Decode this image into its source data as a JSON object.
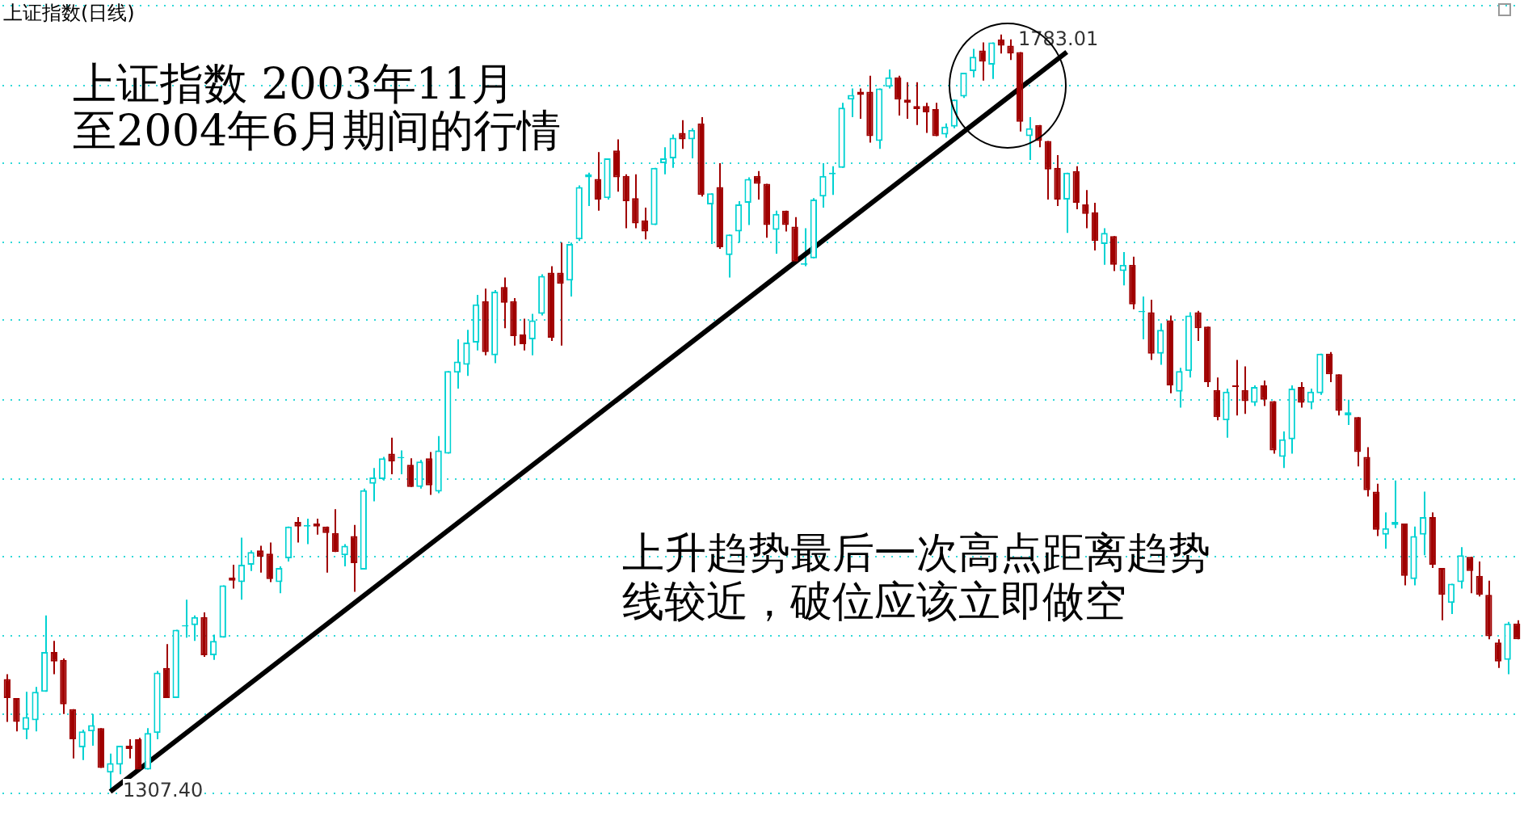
{
  "chart_data": {
    "type": "candlestick",
    "title": "上证指数(日线)",
    "annotations": [
      "上证指数 2003年11月",
      "至2004年6月期间的行情",
      "上升趋势最后一次高点距离趋势",
      "线较近，破位应该立即做空",
      "1307.40",
      "1783.01"
    ],
    "categories": [
      null,
      null,
      null,
      null,
      null,
      null,
      null,
      null,
      null,
      null,
      null,
      null,
      null,
      null,
      null,
      null,
      null,
      null,
      null,
      null,
      null,
      null,
      null,
      null,
      null,
      null,
      null,
      null,
      null,
      null,
      null,
      null,
      null,
      null,
      null,
      null,
      null,
      null,
      null,
      null,
      null,
      null,
      null,
      null,
      null,
      null,
      null,
      null,
      null,
      null,
      null,
      null,
      null,
      null,
      null,
      null,
      null,
      null,
      null,
      null,
      null,
      null,
      null,
      null,
      null,
      null,
      null,
      null,
      null,
      null,
      null,
      null,
      null,
      null,
      null,
      null,
      null,
      null,
      null,
      null,
      null,
      null,
      null,
      null,
      null,
      null,
      null,
      null,
      null,
      null,
      null,
      null,
      null,
      null,
      null,
      null,
      null,
      null,
      null,
      null,
      null,
      null,
      null,
      null,
      null,
      null,
      null,
      null,
      null,
      null,
      null,
      null,
      null,
      null,
      null,
      null,
      null,
      null,
      null,
      null,
      null,
      null,
      null,
      null,
      null,
      null,
      null,
      null,
      null,
      null,
      null,
      null,
      null,
      null,
      null,
      null,
      null,
      null,
      null,
      null,
      null,
      null,
      null,
      null,
      null,
      null,
      null,
      null,
      null,
      null,
      null,
      null,
      null,
      null,
      null,
      null,
      null,
      null,
      null,
      null,
      null,
      null
    ],
    "ohlc": [
      [
        1377,
        1380,
        1350,
        1365
      ],
      [
        1365,
        1365,
        1344,
        1350
      ],
      [
        1345,
        1369,
        1339,
        1353
      ],
      [
        1351,
        1372,
        1344,
        1369
      ],
      [
        1369,
        1417,
        1369,
        1394
      ],
      [
        1394,
        1401,
        1380,
        1388
      ],
      [
        1389,
        1390,
        1355,
        1361
      ],
      [
        1358,
        1358,
        1327,
        1339
      ],
      [
        1334,
        1345,
        1326,
        1344
      ],
      [
        1344,
        1355,
        1335,
        1348
      ],
      [
        1346,
        1346,
        1321,
        1321
      ],
      [
        1318,
        1330,
        1307.4,
        1324
      ],
      [
        1323,
        1335,
        1317,
        1335
      ],
      [
        1335,
        1339,
        1327,
        1333
      ],
      [
        1339,
        1340,
        1320,
        1320
      ],
      [
        1320,
        1346,
        1320,
        1343
      ],
      [
        1343,
        1382,
        1339,
        1381
      ],
      [
        1384,
        1399,
        1365,
        1365
      ],
      [
        1365,
        1408,
        1365,
        1408
      ],
      [
        1410,
        1427,
        1403,
        1411
      ],
      [
        1411,
        1417,
        1401,
        1416
      ],
      [
        1416,
        1419,
        1391,
        1392
      ],
      [
        1392,
        1405,
        1389,
        1401
      ],
      [
        1403,
        1436,
        1403,
        1436
      ],
      [
        1441,
        1449,
        1434,
        1439
      ],
      [
        1438,
        1466,
        1427,
        1449
      ],
      [
        1449,
        1458,
        1445,
        1457
      ],
      [
        1458,
        1461,
        1444,
        1454
      ],
      [
        1456,
        1463,
        1438,
        1440
      ],
      [
        1438,
        1448,
        1431,
        1447
      ],
      [
        1453,
        1473,
        1451,
        1473
      ],
      [
        1476,
        1479,
        1463,
        1473
      ],
      [
        1473,
        1478,
        1462,
        1474
      ],
      [
        1475,
        1478,
        1468,
        1473
      ],
      [
        1473,
        1473,
        1444,
        1469
      ],
      [
        1469,
        1484,
        1457,
        1457
      ],
      [
        1455,
        1462,
        1448,
        1461
      ],
      [
        1467,
        1474,
        1432,
        1450
      ],
      [
        1446,
        1497,
        1446,
        1496
      ],
      [
        1500,
        1510,
        1489,
        1504
      ],
      [
        1503,
        1517,
        1502,
        1516
      ],
      [
        1519,
        1529,
        1506,
        1514
      ],
      [
        1516,
        1521,
        1506,
        1517
      ],
      [
        1512,
        1516,
        1498,
        1498
      ],
      [
        1498,
        1515,
        1497,
        1514
      ],
      [
        1516,
        1520,
        1493,
        1499
      ],
      [
        1495,
        1530,
        1494,
        1521
      ],
      [
        1519,
        1571,
        1519,
        1571
      ],
      [
        1570,
        1591,
        1560,
        1577
      ],
      [
        1575,
        1597,
        1568,
        1589
      ],
      [
        1589,
        1619,
        1584,
        1613
      ],
      [
        1615,
        1623,
        1581,
        1583
      ],
      [
        1581,
        1622,
        1576,
        1621
      ],
      [
        1624,
        1630,
        1598,
        1614
      ],
      [
        1615,
        1617,
        1587,
        1593
      ],
      [
        1594,
        1604,
        1584,
        1588
      ],
      [
        1591,
        1607,
        1581,
        1603
      ],
      [
        1607,
        1632,
        1606,
        1631
      ],
      [
        1633,
        1637,
        1590,
        1592
      ],
      [
        1633,
        1652,
        1587,
        1626
      ],
      [
        1628,
        1652,
        1618,
        1651
      ],
      [
        1654,
        1688,
        1653,
        1687
      ],
      [
        1693,
        1696,
        1675,
        1695
      ],
      [
        1692,
        1709,
        1672,
        1679
      ],
      [
        1680,
        1705,
        1679,
        1705
      ],
      [
        1710,
        1717,
        1684,
        1693
      ],
      [
        1694,
        1695,
        1661,
        1678
      ],
      [
        1680,
        1695,
        1661,
        1664
      ],
      [
        1666,
        1674,
        1654,
        1659
      ],
      [
        1663,
        1699,
        1663,
        1699
      ],
      [
        1702,
        1712,
        1695,
        1705
      ],
      [
        1705,
        1720,
        1699,
        1718
      ],
      [
        1721,
        1729,
        1711,
        1717
      ],
      [
        1717,
        1724,
        1705,
        1723
      ],
      [
        1727,
        1731,
        1681,
        1682
      ],
      [
        1676,
        1683,
        1651,
        1683
      ],
      [
        1687,
        1702,
        1648,
        1649
      ],
      [
        1644,
        1657,
        1630,
        1657
      ],
      [
        1659,
        1678,
        1652,
        1676
      ],
      [
        1677,
        1693,
        1663,
        1692
      ],
      [
        1694,
        1697,
        1679,
        1689
      ],
      [
        1689,
        1689,
        1655,
        1663
      ],
      [
        1660,
        1672,
        1645,
        1670
      ],
      [
        1672,
        1672,
        1659,
        1663
      ],
      [
        1662,
        1668,
        1639,
        1640
      ],
      [
        1638,
        1661,
        1637,
        1639
      ],
      [
        1642,
        1680,
        1642,
        1679
      ],
      [
        1681,
        1702,
        1674,
        1694
      ],
      [
        1695,
        1700,
        1682,
        1696
      ],
      [
        1699,
        1740,
        1699,
        1737
      ],
      [
        1742,
        1749,
        1731,
        1745
      ],
      [
        1747,
        1749,
        1730,
        1745
      ],
      [
        1747,
        1757,
        1715,
        1719
      ],
      [
        1716,
        1749,
        1711,
        1749
      ],
      [
        1750,
        1761,
        1749,
        1756
      ],
      [
        1756,
        1757,
        1732,
        1742
      ],
      [
        1742,
        1753,
        1730,
        1740
      ],
      [
        1738,
        1753,
        1726,
        1736
      ],
      [
        1738,
        1740,
        1721,
        1734
      ],
      [
        1736,
        1740,
        1719,
        1719
      ],
      [
        1720,
        1727,
        1718,
        1725
      ],
      [
        1725,
        1742,
        1724,
        1742
      ],
      [
        1744,
        1759,
        1743,
        1759
      ],
      [
        1760,
        1774,
        1756,
        1769
      ],
      [
        1773,
        1778,
        1754,
        1766
      ],
      [
        1764,
        1778,
        1755,
        1778
      ],
      [
        1780,
        1783.01,
        1771,
        1776
      ],
      [
        1776,
        1780,
        1767,
        1771
      ],
      [
        1772,
        1772,
        1722,
        1728
      ],
      [
        1719,
        1731,
        1704,
        1724
      ],
      [
        1726,
        1726,
        1712,
        1716
      ],
      [
        1716,
        1716,
        1679,
        1698
      ],
      [
        1699,
        1707,
        1675,
        1679
      ],
      [
        1679,
        1696,
        1658,
        1696
      ],
      [
        1697,
        1700,
        1673,
        1677
      ],
      [
        1676,
        1685,
        1661,
        1670
      ],
      [
        1671,
        1677,
        1647,
        1653
      ],
      [
        1651,
        1661,
        1638,
        1658
      ],
      [
        1656,
        1656,
        1634,
        1638
      ],
      [
        1634,
        1646,
        1625,
        1638
      ],
      [
        1638,
        1643,
        1610,
        1613
      ],
      [
        1608,
        1618,
        1591,
        1609
      ],
      [
        1608,
        1616,
        1578,
        1582
      ],
      [
        1582,
        1601,
        1575,
        1597
      ],
      [
        1603,
        1606,
        1557,
        1562
      ],
      [
        1558,
        1573,
        1548,
        1571
      ],
      [
        1571,
        1608,
        1567,
        1606
      ],
      [
        1608,
        1609,
        1590,
        1598
      ],
      [
        1599,
        1599,
        1561,
        1564
      ],
      [
        1559,
        1567,
        1540,
        1542
      ],
      [
        1540,
        1560,
        1529,
        1558
      ],
      [
        1562,
        1578,
        1543,
        1561
      ],
      [
        1559,
        1574,
        1544,
        1552
      ],
      [
        1551,
        1562,
        1549,
        1561
      ],
      [
        1562,
        1565,
        1549,
        1553
      ],
      [
        1552,
        1552,
        1519,
        1521
      ],
      [
        1517,
        1533,
        1510,
        1528
      ],
      [
        1528,
        1562,
        1519,
        1560
      ],
      [
        1561,
        1564,
        1548,
        1551
      ],
      [
        1551,
        1560,
        1547,
        1558
      ],
      [
        1557,
        1582,
        1556,
        1582
      ],
      [
        1582,
        1583,
        1564,
        1569
      ],
      [
        1569,
        1569,
        1543,
        1546
      ],
      [
        1543,
        1553,
        1537,
        1545
      ],
      [
        1542,
        1542,
        1511,
        1520
      ],
      [
        1517,
        1523,
        1492,
        1496
      ],
      [
        1495,
        1500,
        1467,
        1471
      ],
      [
        1468,
        1482,
        1459,
        1472
      ],
      [
        1474,
        1502,
        1472,
        1476
      ],
      [
        1475,
        1475,
        1436,
        1442
      ],
      [
        1440,
        1473,
        1436,
        1467
      ],
      [
        1468,
        1495,
        1455,
        1479
      ],
      [
        1479,
        1482,
        1447,
        1449
      ],
      [
        1447,
        1447,
        1414,
        1430
      ],
      [
        1425,
        1437,
        1418,
        1437
      ],
      [
        1438,
        1460,
        1434,
        1455
      ],
      [
        1454,
        1454,
        1431,
        1445
      ],
      [
        1442,
        1451,
        1429,
        1430
      ],
      [
        1430,
        1439,
        1402,
        1404
      ],
      [
        1400,
        1402,
        1384,
        1388
      ],
      [
        1389,
        1413,
        1380,
        1412
      ],
      [
        1412,
        1414,
        1402,
        1402
      ]
    ],
    "series": [
      {
        "type": "line",
        "color": "#000000",
        "values": [
          null,
          null,
          null,
          null,
          null,
          null,
          null,
          null,
          null,
          null,
          null,
          1306,
          null,
          null,
          null,
          null,
          null,
          null,
          null,
          null,
          null,
          null,
          null,
          null,
          null,
          null,
          null,
          null,
          null,
          null,
          null,
          null,
          null,
          null,
          null,
          null,
          null,
          null,
          null,
          null,
          null,
          null,
          null,
          null,
          null,
          null,
          null,
          null,
          null,
          null,
          null,
          null,
          null,
          null,
          null,
          null,
          null,
          null,
          null,
          null,
          null,
          null,
          null,
          null,
          null,
          null,
          null,
          null,
          null,
          null,
          null,
          null,
          null,
          null,
          null,
          null,
          null,
          null,
          null,
          null,
          null,
          null,
          null,
          null,
          null,
          null,
          null,
          null,
          null,
          null,
          null,
          null,
          null,
          null,
          null,
          null,
          null,
          null,
          null,
          null,
          null,
          null,
          null,
          null,
          null,
          null,
          null,
          null,
          null,
          null,
          null,
          null,
          null,
          1772,
          null,
          null,
          null,
          null,
          null,
          null,
          null,
          null,
          null,
          null,
          null,
          null,
          null,
          null,
          null,
          null,
          null,
          null,
          null,
          null,
          null,
          null,
          null,
          null,
          null,
          null,
          null,
          null,
          null,
          null,
          null,
          null,
          null,
          null,
          null,
          null,
          null,
          null,
          null,
          null,
          null,
          null,
          null,
          null,
          null,
          null,
          null,
          null
        ]
      }
    ],
    "yticks": [
      {
        "value": 1305,
        "label": null
      },
      {
        "value": 1355,
        "label": null
      },
      {
        "value": 1404,
        "label": null
      },
      {
        "value": 1454,
        "label": null
      },
      {
        "value": 1503,
        "label": null
      },
      {
        "value": 1553,
        "label": null
      },
      {
        "value": 1603,
        "label": null
      },
      {
        "value": 1652,
        "label": null
      },
      {
        "value": 1702,
        "label": null
      },
      {
        "value": 1751,
        "label": null
      },
      {
        "value": 1801,
        "label": null
      }
    ],
    "grid": "y",
    "legend": false,
    "tick_labels": false
  }
}
